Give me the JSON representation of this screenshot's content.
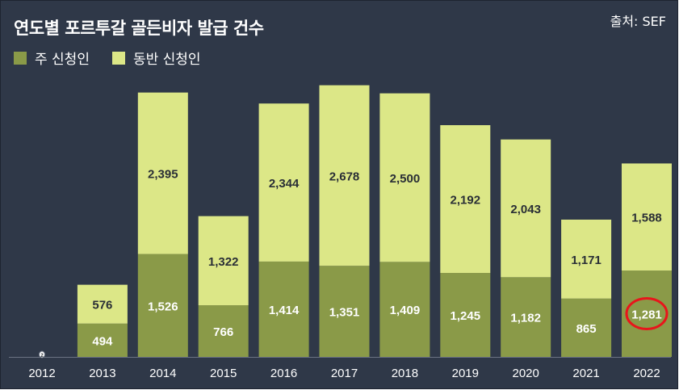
{
  "title": "연도별 포르투갈 골든비자 발급 건수",
  "source": "출처: SEF",
  "colors": {
    "main": "#8a9a48",
    "family": "#dce787",
    "background": "#2f3848",
    "highlight": "#e8151b"
  },
  "legend": [
    {
      "name": "주 신청인",
      "color": "#8a9a48"
    },
    {
      "name": "동반 신청인",
      "color": "#dce787"
    }
  ],
  "chart_data": {
    "type": "bar",
    "stacked": true,
    "categories": [
      "2012",
      "2013",
      "2014",
      "2015",
      "2016",
      "2017",
      "2018",
      "2019",
      "2020",
      "2021",
      "2022"
    ],
    "series": [
      {
        "name": "주 신청인",
        "values": [
          2,
          494,
          1526,
          766,
          1414,
          1351,
          1409,
          1245,
          1182,
          865,
          1281
        ],
        "labels": [
          "2",
          "494",
          "1,526",
          "766",
          "1,414",
          "1,351",
          "1,409",
          "1,245",
          "1,182",
          "865",
          "1,281"
        ]
      },
      {
        "name": "동반 신청인",
        "values": [
          0,
          576,
          2395,
          1322,
          2344,
          2678,
          2500,
          2192,
          2043,
          1171,
          1588
        ],
        "labels": [
          "",
          "576",
          "2,395",
          "1,322",
          "2,344",
          "2,678",
          "2,500",
          "2,192",
          "2,043",
          "1,171",
          "1,588"
        ]
      }
    ],
    "highlight": {
      "category": "2022",
      "series": "주 신청인"
    }
  }
}
